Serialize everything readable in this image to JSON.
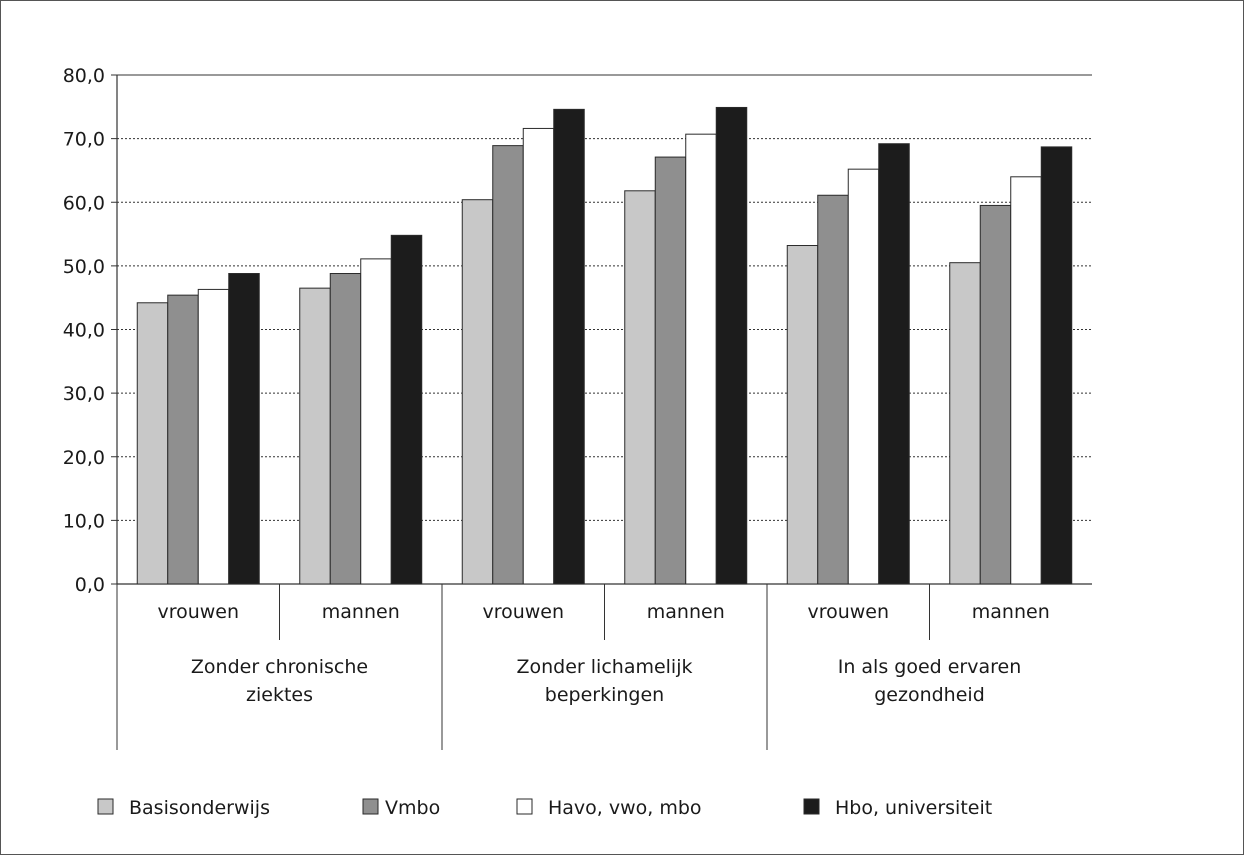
{
  "chart_data": {
    "type": "bar",
    "title": "",
    "xlabel": "",
    "ylabel": "",
    "ylim": [
      0,
      80
    ],
    "yticks": [
      "80,0",
      "70,0",
      "60,0",
      "50,0",
      "40,0",
      "30,0",
      "20,0",
      "10,0",
      "0,0"
    ],
    "ytick_values": [
      80,
      70,
      60,
      50,
      40,
      30,
      20,
      10,
      0
    ],
    "categories": [
      "vrouwen",
      "mannen",
      "vrouwen",
      "mannen",
      "vrouwen",
      "mannen"
    ],
    "groups": [
      {
        "label_lines": [
          "Zonder chronische",
          "ziektes"
        ]
      },
      {
        "label_lines": [
          "Zonder lichamelijk",
          "beperkingen"
        ]
      },
      {
        "label_lines": [
          "In als goed ervaren",
          "gezondheid"
        ]
      }
    ],
    "series": [
      {
        "name": "Basisonderwijs",
        "color": "#c8c8c8",
        "values": [
          44.2,
          46.5,
          60.4,
          61.8,
          53.2,
          50.5
        ]
      },
      {
        "name": "Vmbo",
        "color": "#8f8f8f",
        "values": [
          45.4,
          48.8,
          68.9,
          67.1,
          61.1,
          59.5
        ]
      },
      {
        "name": "Havo, vwo, mbo",
        "color": "#ffffff",
        "values": [
          46.3,
          51.1,
          71.6,
          70.7,
          65.2,
          64.0
        ]
      },
      {
        "name": "Hbo, universiteit",
        "color": "#1c1c1c",
        "values": [
          48.8,
          54.8,
          74.6,
          74.9,
          69.2,
          68.7
        ]
      }
    ],
    "grid": true,
    "grid_style": "dotted",
    "legend_position": "bottom"
  }
}
